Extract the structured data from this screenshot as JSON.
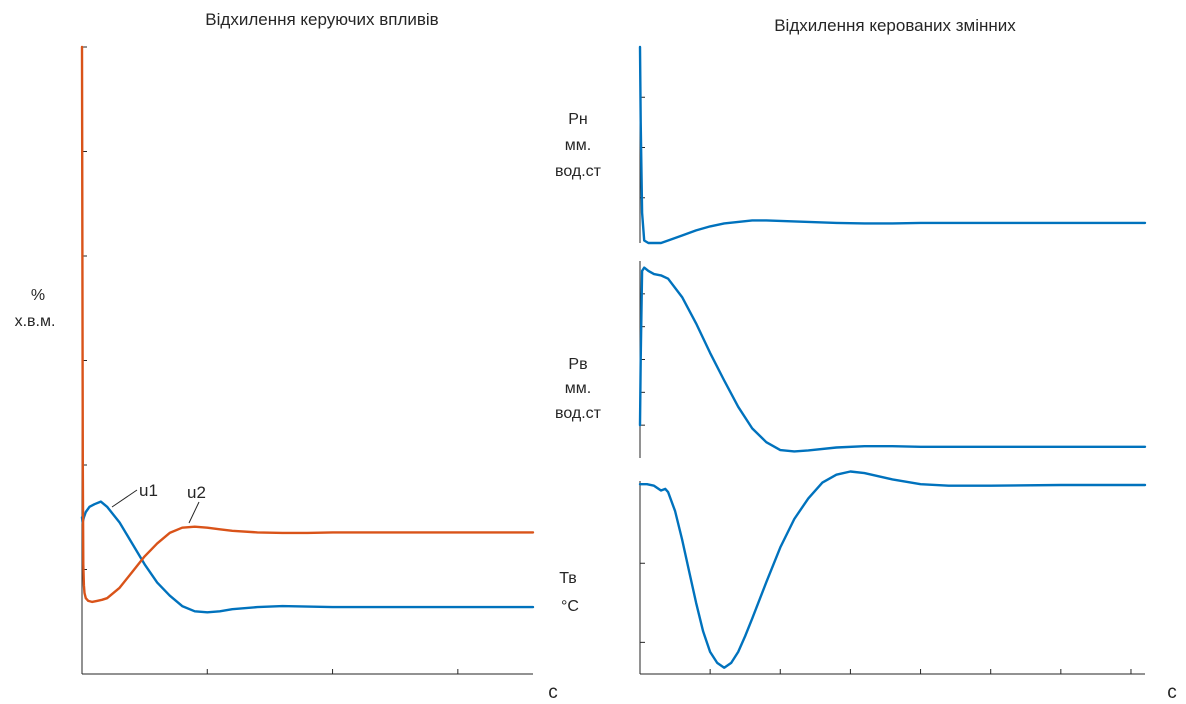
{
  "colors": {
    "blue": "#0072BD",
    "orange": "#D95319",
    "axis": "#262626"
  },
  "chart_data": [
    {
      "type": "line",
      "title": "Відхилення керуючих впливів",
      "ylabel": [
        "%",
        "х.в.м."
      ],
      "xunit": "с",
      "xlim": [
        0,
        3600
      ],
      "ylim": [
        -12,
        0
      ],
      "xticks": [
        "0",
        "1000",
        "2000",
        "3000"
      ],
      "yticks": [
        "0",
        "-2",
        "-4",
        "-6",
        "-8",
        "-10",
        "-12"
      ],
      "series": [
        {
          "name": "u1",
          "color": "#0072BD",
          "x": [
            0,
            5,
            15,
            30,
            60,
            100,
            150,
            200,
            300,
            400,
            500,
            600,
            700,
            800,
            900,
            1000,
            1100,
            1200,
            1400,
            1600,
            1800,
            2000,
            2500,
            3000,
            3600
          ],
          "y": [
            -9.0,
            -9.1,
            -9.0,
            -8.9,
            -8.8,
            -8.75,
            -8.7,
            -8.8,
            -9.1,
            -9.5,
            -9.9,
            -10.25,
            -10.5,
            -10.7,
            -10.8,
            -10.82,
            -10.8,
            -10.76,
            -10.72,
            -10.7,
            -10.71,
            -10.72,
            -10.72,
            -10.72,
            -10.72
          ]
        },
        {
          "name": "u2",
          "color": "#D95319",
          "x": [
            0,
            3,
            6,
            10,
            15,
            20,
            30,
            50,
            80,
            120,
            160,
            200,
            300,
            400,
            500,
            600,
            700,
            800,
            900,
            1000,
            1100,
            1200,
            1400,
            1600,
            1800,
            2000,
            2500,
            3000,
            3600
          ],
          "y": [
            0,
            -4,
            -8,
            -9.9,
            -10.3,
            -10.45,
            -10.55,
            -10.6,
            -10.62,
            -10.6,
            -10.58,
            -10.55,
            -10.35,
            -10.05,
            -9.75,
            -9.5,
            -9.3,
            -9.2,
            -9.18,
            -9.2,
            -9.23,
            -9.26,
            -9.29,
            -9.3,
            -9.3,
            -9.29,
            -9.29,
            -9.29,
            -9.29
          ]
        }
      ],
      "annotations": [
        "u1",
        "u2"
      ]
    },
    {
      "type": "line",
      "title": "Відхилення керованих змінних",
      "xunit": "с",
      "xlim": [
        0,
        3600
      ],
      "xticks": [
        "0",
        "500",
        "1000",
        "1500",
        "2000",
        "2500",
        "3000",
        "3500"
      ],
      "subplots": [
        {
          "ylabel": [
            "Pн",
            "мм.",
            "вод.ст"
          ],
          "ylim": [
            -3.9,
            0
          ],
          "yticks": [
            "-1",
            "-2",
            "-3"
          ],
          "series": [
            {
              "color": "#0072BD",
              "x": [
                0,
                5,
                15,
                30,
                60,
                100,
                150,
                200,
                300,
                400,
                500,
                600,
                700,
                800,
                900,
                1000,
                1200,
                1400,
                1600,
                1800,
                2000,
                2500,
                3000,
                3600
              ],
              "y": [
                0,
                -1.5,
                -3.3,
                -3.85,
                -3.9,
                -3.9,
                -3.9,
                -3.85,
                -3.75,
                -3.65,
                -3.57,
                -3.51,
                -3.48,
                -3.45,
                -3.45,
                -3.46,
                -3.48,
                -3.5,
                -3.51,
                -3.51,
                -3.5,
                -3.5,
                -3.5,
                -3.5
              ]
            }
          ]
        },
        {
          "ylabel": [
            "Pв",
            "мм.",
            "вод.ст"
          ],
          "ylim": [
            -5,
            25
          ],
          "yticks": [
            "0",
            "5",
            "10",
            "15",
            "20"
          ],
          "series": [
            {
              "color": "#0072BD",
              "x": [
                0,
                5,
                15,
                30,
                60,
                100,
                150,
                200,
                300,
                400,
                500,
                600,
                700,
                800,
                900,
                1000,
                1100,
                1200,
                1400,
                1600,
                1800,
                2000,
                2500,
                3000,
                3600
              ],
              "y": [
                0,
                10,
                23.5,
                24,
                23.5,
                23.0,
                22.8,
                22.3,
                19.5,
                15.5,
                11,
                6.8,
                2.8,
                -0.5,
                -2.6,
                -3.8,
                -4.0,
                -3.85,
                -3.4,
                -3.2,
                -3.2,
                -3.3,
                -3.3,
                -3.3,
                -3.3
              ]
            }
          ]
        },
        {
          "ylabel": [
            "Тв",
            "°С"
          ],
          "ylim": [
            -0.12,
            0.002
          ],
          "yticks": [
            "-0.05",
            "-0.1"
          ],
          "series": [
            {
              "color": "#0072BD",
              "x": [
                0,
                50,
                100,
                150,
                180,
                200,
                250,
                300,
                350,
                400,
                450,
                500,
                550,
                600,
                650,
                700,
                750,
                800,
                900,
                1000,
                1100,
                1200,
                1300,
                1400,
                1500,
                1600,
                1800,
                2000,
                2200,
                2500,
                3000,
                3600
              ],
              "y": [
                0,
                0,
                -0.001,
                -0.004,
                -0.003,
                -0.005,
                -0.017,
                -0.035,
                -0.055,
                -0.075,
                -0.093,
                -0.106,
                -0.113,
                -0.116,
                -0.113,
                -0.106,
                -0.096,
                -0.085,
                -0.062,
                -0.04,
                -0.022,
                -0.009,
                0.001,
                0.006,
                0.008,
                0.007,
                0.003,
                0.0,
                -0.001,
                -0.001,
                -0.0005,
                -0.0005
              ]
            }
          ]
        }
      ]
    }
  ]
}
